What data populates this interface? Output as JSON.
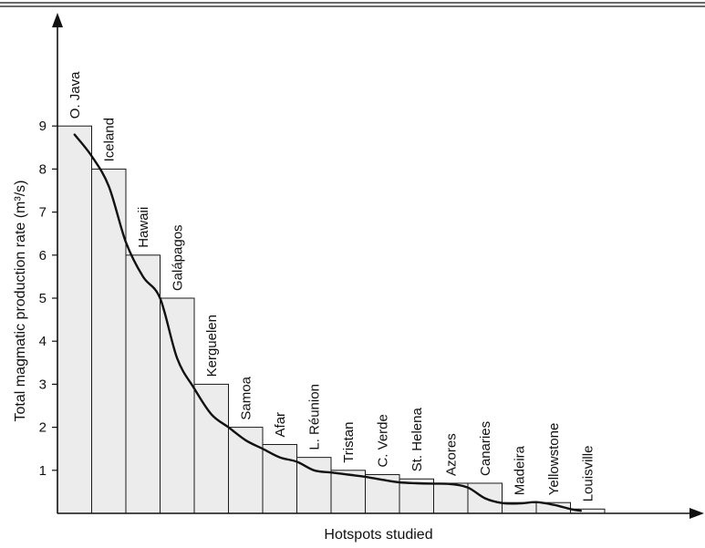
{
  "chart_data": {
    "type": "bar",
    "categories": [
      "O. Java",
      "Iceland",
      "Hawaii",
      "Galápagos",
      "Kerguelen",
      "Samoa",
      "Afar",
      "L. Réunion",
      "Tristan",
      "C. Verde",
      "St. Helena",
      "Azores",
      "Canaries",
      "Madeira",
      "Yellowstone",
      "Louisville"
    ],
    "values": [
      9,
      8,
      6,
      5,
      3,
      2,
      1.6,
      1.3,
      1.0,
      0.9,
      0.8,
      0.7,
      0.7,
      0.25,
      0.25,
      0.1
    ],
    "trend_line": [
      {
        "x": 0.5,
        "y": 8.8
      },
      {
        "x": 1.0,
        "y": 8.3
      },
      {
        "x": 1.5,
        "y": 7.6
      },
      {
        "x": 2.0,
        "y": 6.3
      },
      {
        "x": 2.5,
        "y": 5.5
      },
      {
        "x": 3.0,
        "y": 5.0
      },
      {
        "x": 3.5,
        "y": 3.6
      },
      {
        "x": 4.0,
        "y": 2.9
      },
      {
        "x": 4.5,
        "y": 2.3
      },
      {
        "x": 5.0,
        "y": 2.0
      },
      {
        "x": 5.5,
        "y": 1.7
      },
      {
        "x": 6.0,
        "y": 1.5
      },
      {
        "x": 6.5,
        "y": 1.3
      },
      {
        "x": 7.0,
        "y": 1.2
      },
      {
        "x": 7.5,
        "y": 1.0
      },
      {
        "x": 8.0,
        "y": 0.95
      },
      {
        "x": 8.5,
        "y": 0.9
      },
      {
        "x": 9.0,
        "y": 0.85
      },
      {
        "x": 9.5,
        "y": 0.78
      },
      {
        "x": 10.0,
        "y": 0.72
      },
      {
        "x": 10.5,
        "y": 0.7
      },
      {
        "x": 11.0,
        "y": 0.69
      },
      {
        "x": 11.5,
        "y": 0.68
      },
      {
        "x": 12.0,
        "y": 0.6
      },
      {
        "x": 12.5,
        "y": 0.35
      },
      {
        "x": 13.0,
        "y": 0.24
      },
      {
        "x": 13.5,
        "y": 0.23
      },
      {
        "x": 14.0,
        "y": 0.26
      },
      {
        "x": 14.5,
        "y": 0.2
      },
      {
        "x": 15.0,
        "y": 0.1
      },
      {
        "x": 15.3,
        "y": 0.06
      }
    ],
    "ylabel": "Total magmatic production rate   (m³/s)",
    "xlabel": "Hotspots studied",
    "yticks": [
      1,
      2,
      3,
      4,
      5,
      6,
      7,
      8,
      9
    ],
    "ylim": [
      0,
      9
    ],
    "grid": false,
    "bar_fill": "#ececec",
    "line_color": "#111111"
  }
}
